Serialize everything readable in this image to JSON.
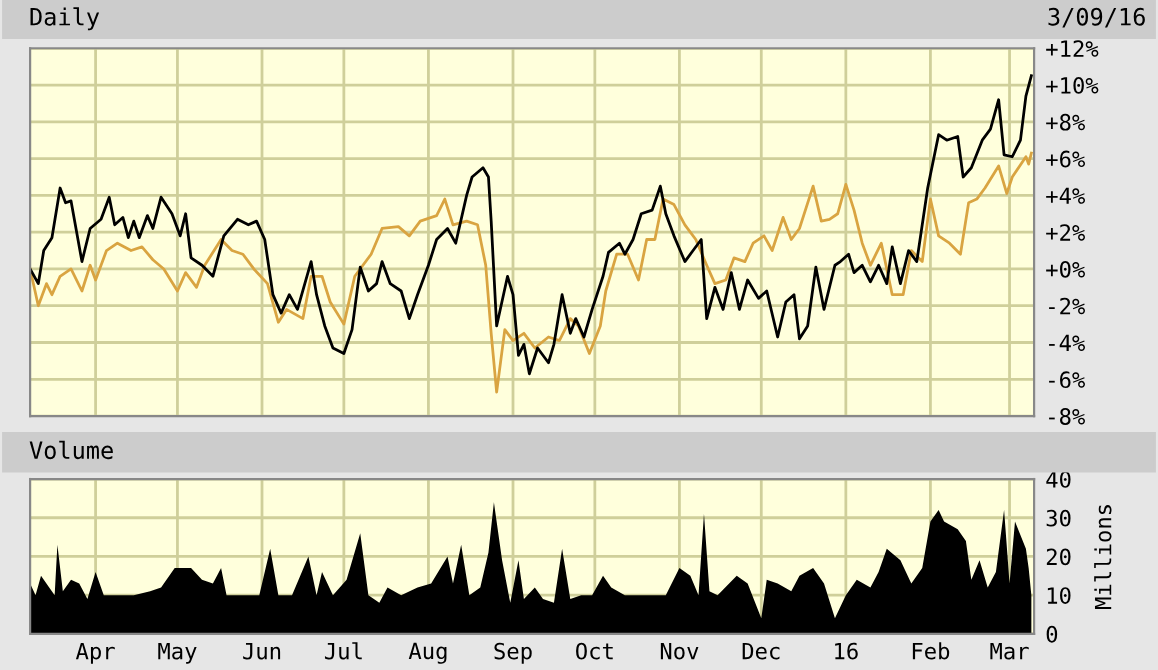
{
  "chart_data": [
    {
      "type": "line",
      "title": "Daily",
      "annotations": [
        "3/09/16"
      ],
      "grid": true,
      "legend": false,
      "tick_labels": "y",
      "xlim": [
        "2015-03-08",
        "2016-03-10"
      ],
      "xticks": [
        {
          "value": "2015-04-01",
          "label": null
        },
        {
          "value": "2015-05-01",
          "label": null
        },
        {
          "value": "2015-06-01",
          "label": null
        },
        {
          "value": "2015-07-01",
          "label": null
        },
        {
          "value": "2015-08-01",
          "label": null
        },
        {
          "value": "2015-09-01",
          "label": null
        },
        {
          "value": "2015-10-01",
          "label": null
        },
        {
          "value": "2015-11-01",
          "label": null
        },
        {
          "value": "2015-12-01",
          "label": null
        },
        {
          "value": "2016-01-01",
          "label": null
        },
        {
          "value": "2016-02-01",
          "label": null
        },
        {
          "value": "2016-03-01",
          "label": null
        }
      ],
      "ylim": [
        -8,
        12
      ],
      "yticks": [
        {
          "value": -8,
          "label": "-8%"
        },
        {
          "value": -6,
          "label": "-6%"
        },
        {
          "value": -4,
          "label": "-4%"
        },
        {
          "value": -2,
          "label": "-2%"
        },
        {
          "value": 0,
          "label": "+0%"
        },
        {
          "value": 2,
          "label": "+2%"
        },
        {
          "value": 4,
          "label": "+4%"
        },
        {
          "value": 6,
          "label": "+6%"
        },
        {
          "value": 8,
          "label": "+8%"
        },
        {
          "value": 10,
          "label": "+10%"
        },
        {
          "value": 12,
          "label": "+12%"
        }
      ],
      "series": [
        {
          "color": "#d9a441",
          "x": [
            "2015-03-08",
            "2015-03-11",
            "2015-03-14",
            "2015-03-16",
            "2015-03-19",
            "2015-03-23",
            "2015-03-27",
            "2015-03-30",
            "2015-04-01",
            "2015-04-05",
            "2015-04-09",
            "2015-04-14",
            "2015-04-18",
            "2015-04-22",
            "2015-04-26",
            "2015-05-01",
            "2015-05-04",
            "2015-05-08",
            "2015-05-11",
            "2015-05-17",
            "2015-05-21",
            "2015-05-25",
            "2015-05-29",
            "2015-06-03",
            "2015-06-07",
            "2015-06-10",
            "2015-06-16",
            "2015-06-19",
            "2015-06-23",
            "2015-06-26",
            "2015-07-01",
            "2015-07-05",
            "2015-07-11",
            "2015-07-15",
            "2015-07-21",
            "2015-07-25",
            "2015-07-29",
            "2015-08-04",
            "2015-08-07",
            "2015-08-10",
            "2015-08-15",
            "2015-08-19",
            "2015-08-22",
            "2015-08-24",
            "2015-08-26",
            "2015-08-29",
            "2015-09-01",
            "2015-09-05",
            "2015-09-09",
            "2015-09-14",
            "2015-09-18",
            "2015-09-22",
            "2015-09-25",
            "2015-09-29",
            "2015-10-03",
            "2015-10-05",
            "2015-10-09",
            "2015-10-13",
            "2015-10-17",
            "2015-10-20",
            "2015-10-23",
            "2015-10-26",
            "2015-10-30",
            "2015-11-03",
            "2015-11-07",
            "2015-11-11",
            "2015-11-14",
            "2015-11-18",
            "2015-11-21",
            "2015-11-25",
            "2015-11-28",
            "2015-12-02",
            "2015-12-05",
            "2015-12-09",
            "2015-12-12",
            "2015-12-15",
            "2015-12-20",
            "2015-12-23",
            "2015-12-26",
            "2015-12-29",
            "2016-01-01",
            "2016-01-04",
            "2016-01-07",
            "2016-01-10",
            "2016-01-14",
            "2016-01-18",
            "2016-01-22",
            "2016-01-25",
            "2016-01-29",
            "2016-02-01",
            "2016-02-04",
            "2016-02-08",
            "2016-02-12",
            "2016-02-15",
            "2016-02-18",
            "2016-02-21",
            "2016-02-26",
            "2016-02-29",
            "2016-03-02",
            "2016-03-07",
            "2016-03-08",
            "2016-03-09"
          ],
          "values": [
            0,
            -2.0,
            -0.8,
            -1.4,
            -0.4,
            0,
            -1.2,
            0.2,
            -0.6,
            1.0,
            1.4,
            1.0,
            1.2,
            0.5,
            0,
            -1.2,
            -0.2,
            -1.0,
            0.2,
            1.6,
            1.0,
            0.8,
            0,
            -0.8,
            -2.9,
            -2.2,
            -2.7,
            -0.4,
            -0.4,
            -1.8,
            -3.0,
            -0.4,
            0.8,
            2.2,
            2.3,
            1.8,
            2.6,
            2.9,
            3.8,
            2.4,
            2.6,
            2.4,
            0.2,
            -3.5,
            -6.7,
            -3.3,
            -3.9,
            -3.5,
            -4.3,
            -3.7,
            -3.9,
            -2.7,
            -3.1,
            -4.6,
            -3.1,
            -1.2,
            0.8,
            0.8,
            -0.6,
            1.6,
            1.6,
            3.8,
            3.5,
            2.4,
            1.6,
            0.2,
            -0.8,
            -0.6,
            0.6,
            0.4,
            1.4,
            1.8,
            1.0,
            2.8,
            1.6,
            2.2,
            4.5,
            2.6,
            2.7,
            3.0,
            4.6,
            3.2,
            1.4,
            0.2,
            1.4,
            -1.4,
            -1.4,
            1.0,
            0.4,
            3.8,
            1.8,
            1.4,
            0.8,
            3.6,
            3.8,
            4.4,
            5.6,
            4.1,
            5.0,
            6.1,
            5.7,
            6.3
          ]
        },
        {
          "color": "#000000",
          "x": [
            "2015-03-08",
            "2015-03-11",
            "2015-03-13",
            "2015-03-16",
            "2015-03-19",
            "2015-03-21",
            "2015-03-23",
            "2015-03-27",
            "2015-03-30",
            "2015-04-03",
            "2015-04-06",
            "2015-04-08",
            "2015-04-11",
            "2015-04-13",
            "2015-04-15",
            "2015-04-17",
            "2015-04-20",
            "2015-04-22",
            "2015-04-25",
            "2015-04-29",
            "2015-05-02",
            "2015-05-04",
            "2015-05-06",
            "2015-05-10",
            "2015-05-14",
            "2015-05-18",
            "2015-05-23",
            "2015-05-27",
            "2015-05-30",
            "2015-06-02",
            "2015-06-05",
            "2015-06-08",
            "2015-06-11",
            "2015-06-14",
            "2015-06-19",
            "2015-06-21",
            "2015-06-24",
            "2015-06-27",
            "2015-07-01",
            "2015-07-04",
            "2015-07-07",
            "2015-07-10",
            "2015-07-13",
            "2015-07-15",
            "2015-07-18",
            "2015-07-22",
            "2015-07-25",
            "2015-07-28",
            "2015-08-01",
            "2015-08-04",
            "2015-08-08",
            "2015-08-11",
            "2015-08-15",
            "2015-08-17",
            "2015-08-21",
            "2015-08-23",
            "2015-08-24",
            "2015-08-26",
            "2015-08-30",
            "2015-09-01",
            "2015-09-03",
            "2015-09-05",
            "2015-09-07",
            "2015-09-10",
            "2015-09-14",
            "2015-09-16",
            "2015-09-19",
            "2015-09-22",
            "2015-09-24",
            "2015-09-27",
            "2015-09-30",
            "2015-10-04",
            "2015-10-06",
            "2015-10-10",
            "2015-10-12",
            "2015-10-15",
            "2015-10-18",
            "2015-10-22",
            "2015-10-25",
            "2015-10-27",
            "2015-10-30",
            "2015-11-03",
            "2015-11-06",
            "2015-11-09",
            "2015-11-11",
            "2015-11-14",
            "2015-11-17",
            "2015-11-20",
            "2015-11-23",
            "2015-11-26",
            "2015-11-30",
            "2015-12-03",
            "2015-12-07",
            "2015-12-10",
            "2015-12-13",
            "2015-12-15",
            "2015-12-18",
            "2015-12-21",
            "2015-12-24",
            "2015-12-28",
            "2015-12-30",
            "2016-01-02",
            "2016-01-04",
            "2016-01-07",
            "2016-01-10",
            "2016-01-13",
            "2016-01-16",
            "2016-01-18",
            "2016-01-21",
            "2016-01-24",
            "2016-01-27",
            "2016-01-31",
            "2016-02-04",
            "2016-02-07",
            "2016-02-11",
            "2016-02-13",
            "2016-02-16",
            "2016-02-20",
            "2016-02-23",
            "2016-02-26",
            "2016-02-28",
            "2016-03-02",
            "2016-03-05",
            "2016-03-07",
            "2016-03-09"
          ],
          "values": [
            0,
            -0.8,
            1.0,
            1.7,
            4.4,
            3.6,
            3.7,
            0.4,
            2.2,
            2.7,
            3.9,
            2.4,
            2.8,
            1.7,
            2.6,
            1.7,
            2.9,
            2.2,
            3.9,
            3.0,
            1.8,
            3.0,
            0.6,
            0.2,
            -0.4,
            1.8,
            2.7,
            2.4,
            2.6,
            1.6,
            -1.4,
            -2.4,
            -1.4,
            -2.2,
            0.4,
            -1.4,
            -3.1,
            -4.3,
            -4.6,
            -3.3,
            0.1,
            -1.2,
            -0.8,
            0.4,
            -0.8,
            -1.2,
            -2.7,
            -1.4,
            0.2,
            1.6,
            2.2,
            1.4,
            4.0,
            5.0,
            5.5,
            5.0,
            2.6,
            -3.1,
            -0.4,
            -1.4,
            -4.7,
            -4.1,
            -5.7,
            -4.3,
            -5.1,
            -4.1,
            -1.4,
            -3.5,
            -2.7,
            -3.7,
            -2.2,
            -0.4,
            0.9,
            1.4,
            0.8,
            1.6,
            3.0,
            3.2,
            4.5,
            3.0,
            1.8,
            0.4,
            1.0,
            1.6,
            -2.7,
            -1.0,
            -2.2,
            -0.2,
            -2.2,
            -0.6,
            -1.6,
            -1.2,
            -3.7,
            -1.8,
            -1.4,
            -3.8,
            -3.1,
            0.1,
            -2.2,
            0.2,
            0.4,
            0.8,
            -0.2,
            0.2,
            -0.7,
            0.2,
            -0.8,
            1.2,
            -0.8,
            1.0,
            0.4,
            4.4,
            7.3,
            7.0,
            7.2,
            5.0,
            5.5,
            7.0,
            7.6,
            9.2,
            6.2,
            6.1,
            7.0,
            9.4,
            10.5
          ]
        }
      ]
    },
    {
      "type": "area",
      "title": "Volume",
      "ylabel": "Millions",
      "grid": true,
      "legend": false,
      "xlim": [
        "2015-03-08",
        "2016-03-10"
      ],
      "xticks": [
        {
          "value": "2015-04-01",
          "label": "Apr"
        },
        {
          "value": "2015-05-01",
          "label": "May"
        },
        {
          "value": "2015-06-01",
          "label": "Jun"
        },
        {
          "value": "2015-07-01",
          "label": "Jul"
        },
        {
          "value": "2015-08-01",
          "label": "Aug"
        },
        {
          "value": "2015-09-01",
          "label": "Sep"
        },
        {
          "value": "2015-10-01",
          "label": "Oct"
        },
        {
          "value": "2015-11-01",
          "label": "Nov"
        },
        {
          "value": "2015-12-01",
          "label": "Dec"
        },
        {
          "value": "2016-01-01",
          "label": "16"
        },
        {
          "value": "2016-02-01",
          "label": "Feb"
        },
        {
          "value": "2016-03-01",
          "label": "Mar"
        }
      ],
      "ylim": [
        0,
        40
      ],
      "yticks": [
        0,
        10,
        20,
        30,
        40
      ],
      "series": [
        {
          "color": "#000000",
          "x": [
            "2015-03-08",
            "2015-03-10",
            "2015-03-12",
            "2015-03-15",
            "2015-03-17",
            "2015-03-18",
            "2015-03-20",
            "2015-03-23",
            "2015-03-26",
            "2015-03-29",
            "2015-04-01",
            "2015-04-04",
            "2015-04-09",
            "2015-04-15",
            "2015-04-21",
            "2015-04-25",
            "2015-04-30",
            "2015-05-06",
            "2015-05-10",
            "2015-05-14",
            "2015-05-17",
            "2015-05-19",
            "2015-05-26",
            "2015-05-31",
            "2015-06-04",
            "2015-06-07",
            "2015-06-12",
            "2015-06-18",
            "2015-06-21",
            "2015-06-23",
            "2015-06-27",
            "2015-07-02",
            "2015-07-07",
            "2015-07-10",
            "2015-07-14",
            "2015-07-17",
            "2015-07-22",
            "2015-07-28",
            "2015-08-02",
            "2015-08-08",
            "2015-08-10",
            "2015-08-13",
            "2015-08-16",
            "2015-08-20",
            "2015-08-23",
            "2015-08-25",
            "2015-08-28",
            "2015-08-31",
            "2015-09-03",
            "2015-09-05",
            "2015-09-09",
            "2015-09-12",
            "2015-09-16",
            "2015-09-19",
            "2015-09-22",
            "2015-09-26",
            "2015-09-30",
            "2015-10-04",
            "2015-10-07",
            "2015-10-12",
            "2015-10-20",
            "2015-10-27",
            "2015-11-01",
            "2015-11-05",
            "2015-11-08",
            "2015-11-10",
            "2015-11-12",
            "2015-11-15",
            "2015-11-22",
            "2015-11-26",
            "2015-12-01",
            "2015-12-03",
            "2015-12-07",
            "2015-12-12",
            "2015-12-15",
            "2015-12-20",
            "2015-12-24",
            "2015-12-28",
            "2016-01-01",
            "2016-01-05",
            "2016-01-10",
            "2016-01-13",
            "2016-01-16",
            "2016-01-21",
            "2016-01-25",
            "2016-01-29",
            "2016-02-01",
            "2016-02-04",
            "2016-02-06",
            "2016-02-11",
            "2016-02-14",
            "2016-02-16",
            "2016-02-19",
            "2016-02-22",
            "2016-02-25",
            "2016-02-28",
            "2016-03-01",
            "2016-03-03",
            "2016-03-07",
            "2016-03-08",
            "2016-03-09"
          ],
          "values": [
            13,
            10,
            15,
            12,
            10,
            23,
            11,
            14,
            13,
            9,
            16,
            10,
            10,
            10,
            11,
            12,
            17,
            17,
            14,
            13,
            17,
            10,
            10,
            10,
            22,
            10,
            10,
            20,
            10,
            16,
            10,
            14,
            26,
            10,
            8,
            12,
            10,
            12,
            13,
            20,
            13,
            23,
            10,
            12,
            21,
            34,
            19,
            8,
            19,
            9,
            12,
            9,
            8,
            22,
            9,
            10,
            10,
            15,
            12,
            10,
            10,
            10,
            17,
            15,
            10,
            31,
            11,
            10,
            15,
            13,
            4,
            14,
            13,
            11,
            15,
            17,
            13,
            4,
            10,
            14,
            12,
            16,
            22,
            19,
            13,
            17,
            29,
            32,
            29,
            27,
            24,
            14,
            19,
            12,
            16,
            32,
            13,
            29,
            22,
            17,
            10
          ]
        }
      ]
    }
  ]
}
